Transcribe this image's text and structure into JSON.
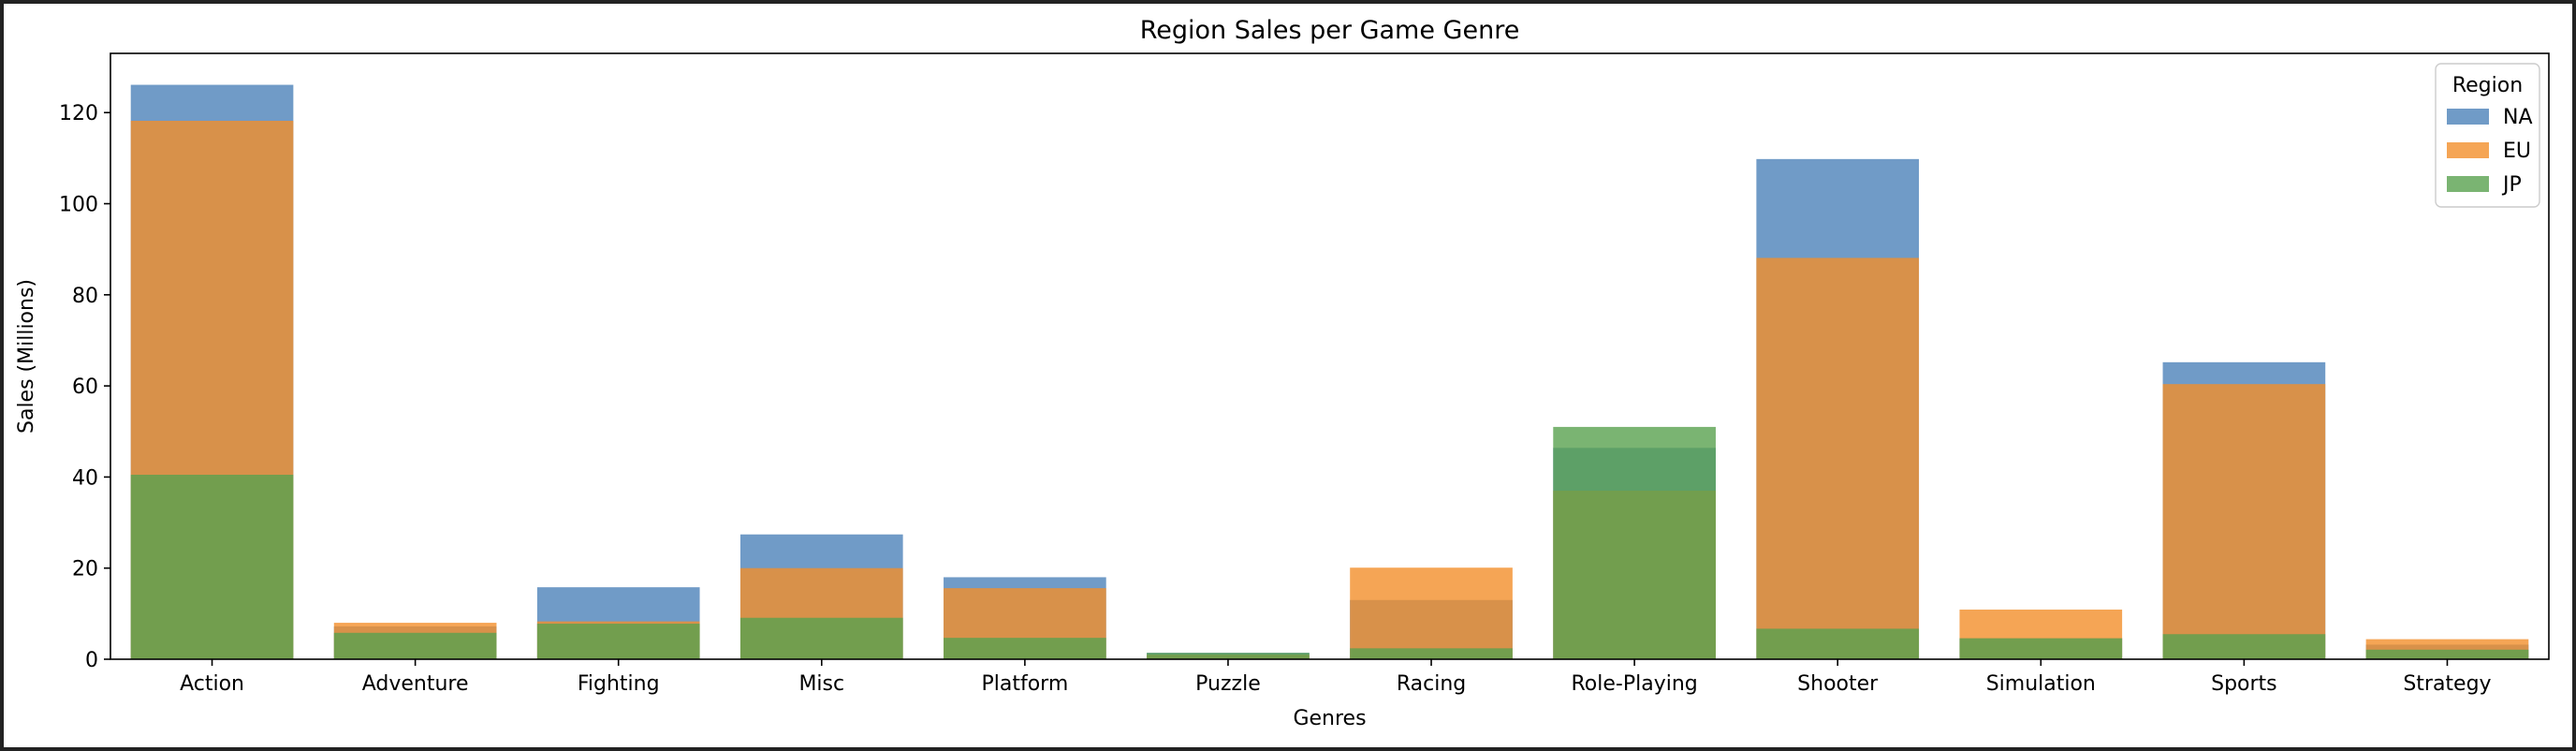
{
  "chart_data": {
    "type": "bar",
    "title": "Region Sales per Game Genre",
    "xlabel": "Genres",
    "ylabel": "Sales (Millions)",
    "ylim": [
      0,
      133
    ],
    "yticks": [
      0,
      20,
      40,
      60,
      80,
      100,
      120
    ],
    "grid": false,
    "categories": [
      "Action",
      "Adventure",
      "Fighting",
      "Misc",
      "Platform",
      "Puzzle",
      "Racing",
      "Role-Playing",
      "Shooter",
      "Simulation",
      "Sports",
      "Strategy"
    ],
    "series": [
      {
        "name": "NA",
        "color": "#4c82b9",
        "values": [
          126.1,
          7.2,
          15.8,
          27.4,
          18.0,
          1.4,
          13.0,
          46.4,
          109.8,
          4.6,
          65.2,
          3.2
        ]
      },
      {
        "name": "EU",
        "color": "#f28e2b",
        "values": [
          118.2,
          8.0,
          8.3,
          20.0,
          15.6,
          1.0,
          20.1,
          37.0,
          88.1,
          10.9,
          60.4,
          4.4
        ]
      },
      {
        "name": "JP",
        "color": "#59a14f",
        "values": [
          40.5,
          5.8,
          7.8,
          9.1,
          4.7,
          1.4,
          2.4,
          51.0,
          6.7,
          4.6,
          5.5,
          2.1
        ]
      }
    ],
    "legend": {
      "title": "Region",
      "position": "top-right"
    }
  }
}
